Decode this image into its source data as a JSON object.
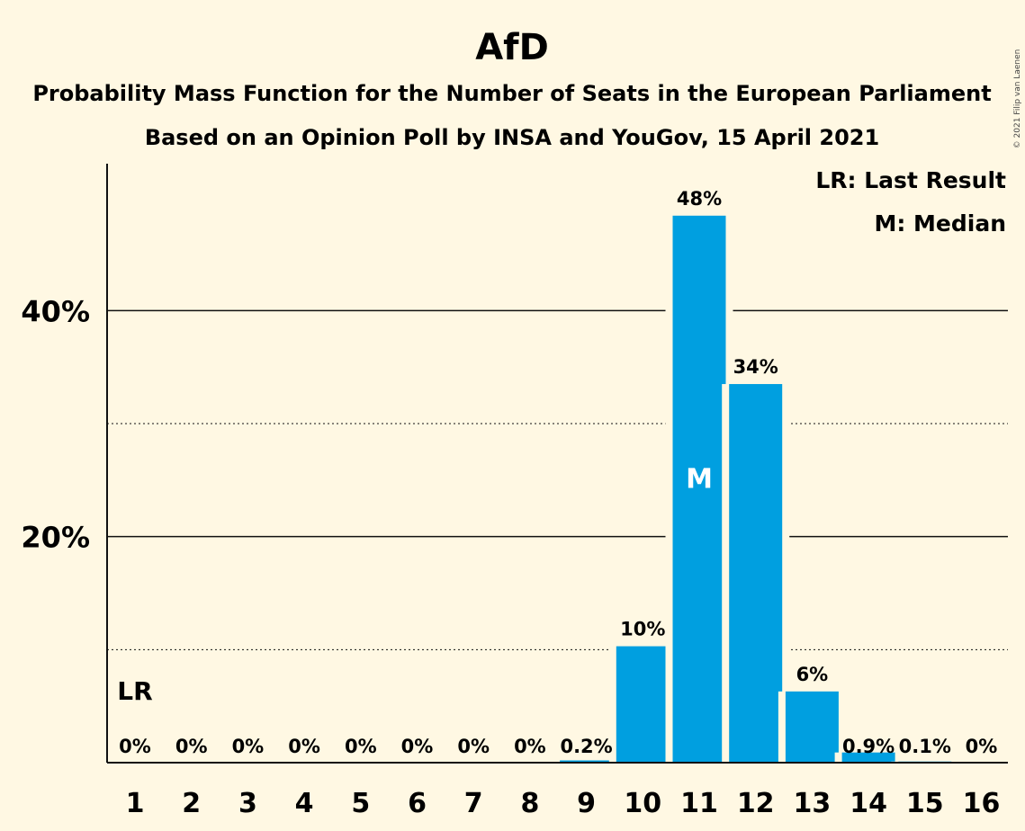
{
  "chart_data": {
    "type": "bar",
    "title": "AfD",
    "subtitle_lines": [
      "Probability Mass Function for the Number of Seats in the European Parliament",
      "Based on an Opinion Poll by INSA and YouGov, 15 April 2021"
    ],
    "categories": [
      "1",
      "2",
      "3",
      "4",
      "5",
      "6",
      "7",
      "8",
      "9",
      "10",
      "11",
      "12",
      "13",
      "14",
      "15",
      "16"
    ],
    "values": [
      0,
      0,
      0,
      0,
      0,
      0,
      0,
      0,
      0.2,
      10.3,
      48.4,
      33.5,
      6.3,
      0.9,
      0.1,
      0
    ],
    "value_labels": [
      "0%",
      "0%",
      "0%",
      "0%",
      "0%",
      "0%",
      "0%",
      "0%",
      "0.2%",
      "10%",
      "48%",
      "34%",
      "6%",
      "0.9%",
      "0.1%",
      "0%"
    ],
    "ylim": [
      0,
      53
    ],
    "yticks": [
      {
        "value": 20,
        "label": "20%"
      },
      {
        "value": 40,
        "label": "40%"
      }
    ],
    "minor_gridlines": [
      10,
      30
    ],
    "last_result_category": "1",
    "median_category": "11",
    "last_result_marker": "LR",
    "median_marker": "M",
    "legend": [
      "LR: Last Result",
      "M: Median"
    ],
    "legend_position": "top-right",
    "bar_color": "#009FE0",
    "background_color": "#FFF8E3"
  },
  "copyright": "© 2021 Filip van Laenen"
}
